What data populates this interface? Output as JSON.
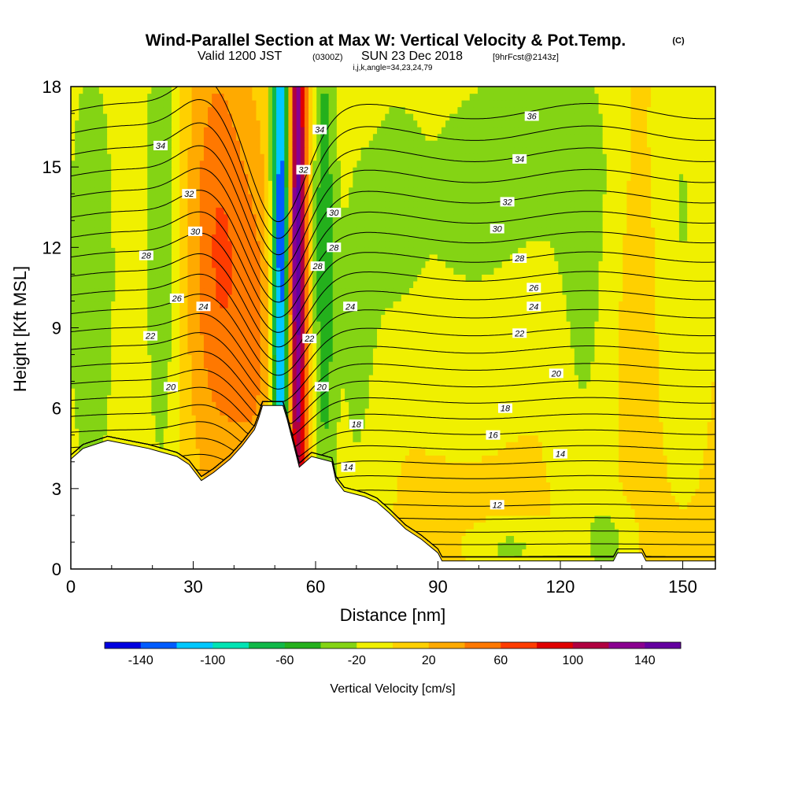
{
  "header": {
    "title": "Wind-Parallel Section at Max W: Vertical Velocity & Pot.Temp.",
    "copyright": "(C)",
    "valid_prefix": "Valid 1200 JST",
    "valid_utc": "(0300Z)",
    "valid_date": "SUN 23 Dec 2018",
    "forecast": "[9hrFcst@2143z]",
    "indices": "i,j,k,angle=34,23,24,79"
  },
  "chart_data": {
    "type": "heatmap",
    "title": "Wind-Parallel Section at Max W: Vertical Velocity & Pot.Temp.",
    "xlabel": "Distance [nm]",
    "ylabel": "Height [Kft MSL]",
    "xlim": [
      0,
      158
    ],
    "ylim": [
      0,
      18
    ],
    "xticks": [
      0,
      30,
      60,
      90,
      120,
      150
    ],
    "yticks": [
      0,
      3,
      6,
      9,
      12,
      15,
      18
    ],
    "colorbar": {
      "title": "Vertical Velocity [cm/s]",
      "tick_labels": [
        "-140",
        "-100",
        "-60",
        "-20",
        "20",
        "60",
        "100",
        "140"
      ],
      "tick_values": [
        -140,
        -100,
        -60,
        -20,
        20,
        60,
        100,
        140
      ],
      "range": [
        -160,
        160
      ],
      "colors": [
        "#0000e0",
        "#005cff",
        "#00c8ff",
        "#00e4b4",
        "#10b848",
        "#24b01c",
        "#84d414",
        "#f0f000",
        "#ffd000",
        "#ffaa00",
        "#ff7800",
        "#ff3c00",
        "#e00000",
        "#b00040",
        "#8a0090",
        "#6400a0"
      ]
    },
    "velocity_field": {
      "background": 5,
      "features": [
        {
          "x": 51.5,
          "y": 12,
          "sx": 1.6,
          "sy": 10,
          "amp": -150
        },
        {
          "x": 55.5,
          "y": 12,
          "sx": 1.6,
          "sy": 10,
          "amp": 150
        },
        {
          "x": 36,
          "y": 12,
          "sx": 5,
          "sy": 6,
          "amp": 55
        },
        {
          "x": 45,
          "y": 9,
          "sx": 4,
          "sy": 5,
          "amp": 35
        },
        {
          "x": 5,
          "y": 11,
          "sx": 5,
          "sy": 7,
          "amp": -45
        },
        {
          "x": 22,
          "y": 13,
          "sx": 3,
          "sy": 8,
          "amp": -45
        },
        {
          "x": 62,
          "y": 12,
          "sx": 2,
          "sy": 9,
          "amp": -50
        },
        {
          "x": 70,
          "y": 8,
          "sx": 5,
          "sy": 8,
          "amp": -25
        },
        {
          "x": 96,
          "y": 13,
          "sx": 17,
          "sy": 5,
          "amp": -25
        },
        {
          "x": 80,
          "y": 14,
          "sx": 4,
          "sy": 3,
          "amp": -20
        },
        {
          "x": 126,
          "y": 10,
          "sx": 5,
          "sy": 7,
          "amp": -25
        },
        {
          "x": 140,
          "y": 12,
          "sx": 4,
          "sy": 5,
          "amp": 8
        },
        {
          "x": 150,
          "y": 13,
          "sx": 5,
          "sy": 6,
          "amp": -25
        },
        {
          "x": 115,
          "y": 16,
          "sx": 15,
          "sy": 3,
          "amp": -20
        },
        {
          "x": 108,
          "y": 0.8,
          "sx": 6,
          "sy": 0.6,
          "amp": -28
        },
        {
          "x": 132,
          "y": 1,
          "sx": 4,
          "sy": 1,
          "amp": -28
        }
      ]
    },
    "terrain": [
      [
        0,
        4.1
      ],
      [
        3,
        4.5
      ],
      [
        9,
        4.8
      ],
      [
        19,
        4.5
      ],
      [
        26,
        4.2
      ],
      [
        29,
        3.9
      ],
      [
        32,
        3.3
      ],
      [
        35,
        3.6
      ],
      [
        39,
        4.1
      ],
      [
        42,
        4.6
      ],
      [
        45,
        5.2
      ],
      [
        46,
        5.6
      ],
      [
        47,
        6.1
      ],
      [
        52,
        6.1
      ],
      [
        53,
        5.6
      ],
      [
        56,
        3.8
      ],
      [
        59,
        4.2
      ],
      [
        64,
        4.0
      ],
      [
        65,
        3.3
      ],
      [
        67,
        2.9
      ],
      [
        72,
        2.7
      ],
      [
        75,
        2.5
      ],
      [
        78,
        2.1
      ],
      [
        82,
        1.5
      ],
      [
        86,
        1.1
      ],
      [
        90,
        0.6
      ],
      [
        91,
        0.3
      ],
      [
        133,
        0.3
      ],
      [
        134,
        0.6
      ],
      [
        140,
        0.6
      ],
      [
        141,
        0.3
      ],
      [
        158,
        0.3
      ]
    ],
    "theta_levels": [
      10,
      11,
      12,
      13,
      14,
      15,
      16,
      17,
      18,
      19,
      20,
      21,
      22,
      23,
      24,
      25,
      26,
      27,
      28,
      29,
      30,
      31,
      32,
      33,
      34,
      35,
      36,
      37,
      38
    ],
    "contour_labels": [
      {
        "text": "34",
        "x": 22,
        "y": 15.8
      },
      {
        "text": "32",
        "x": 29,
        "y": 14.0
      },
      {
        "text": "30",
        "x": 30.5,
        "y": 12.6
      },
      {
        "text": "28",
        "x": 18.5,
        "y": 11.7
      },
      {
        "text": "26",
        "x": 26,
        "y": 10.1
      },
      {
        "text": "24",
        "x": 32.5,
        "y": 9.8
      },
      {
        "text": "22",
        "x": 19.5,
        "y": 8.7
      },
      {
        "text": "20",
        "x": 24.5,
        "y": 6.8
      },
      {
        "text": "34",
        "x": 61,
        "y": 16.4
      },
      {
        "text": "32",
        "x": 57,
        "y": 14.9
      },
      {
        "text": "30",
        "x": 64.5,
        "y": 13.3
      },
      {
        "text": "28",
        "x": 64.5,
        "y": 12.0
      },
      {
        "text": "28",
        "x": 60.5,
        "y": 11.3
      },
      {
        "text": "24",
        "x": 68.5,
        "y": 9.8
      },
      {
        "text": "22",
        "x": 58.5,
        "y": 8.6
      },
      {
        "text": "20",
        "x": 61.5,
        "y": 6.8
      },
      {
        "text": "18",
        "x": 70,
        "y": 5.4
      },
      {
        "text": "14",
        "x": 68,
        "y": 3.8
      },
      {
        "text": "36",
        "x": 113,
        "y": 16.9
      },
      {
        "text": "34",
        "x": 110,
        "y": 15.3
      },
      {
        "text": "32",
        "x": 107,
        "y": 13.7
      },
      {
        "text": "30",
        "x": 104.5,
        "y": 12.7
      },
      {
        "text": "28",
        "x": 110,
        "y": 11.6
      },
      {
        "text": "26",
        "x": 113.5,
        "y": 10.5
      },
      {
        "text": "24",
        "x": 113.5,
        "y": 9.8
      },
      {
        "text": "22",
        "x": 110,
        "y": 8.8
      },
      {
        "text": "20",
        "x": 119,
        "y": 7.3
      },
      {
        "text": "18",
        "x": 106.5,
        "y": 6.0
      },
      {
        "text": "16",
        "x": 103.5,
        "y": 5.0
      },
      {
        "text": "14",
        "x": 120,
        "y": 4.3
      },
      {
        "text": "12",
        "x": 104.5,
        "y": 2.4
      }
    ]
  }
}
